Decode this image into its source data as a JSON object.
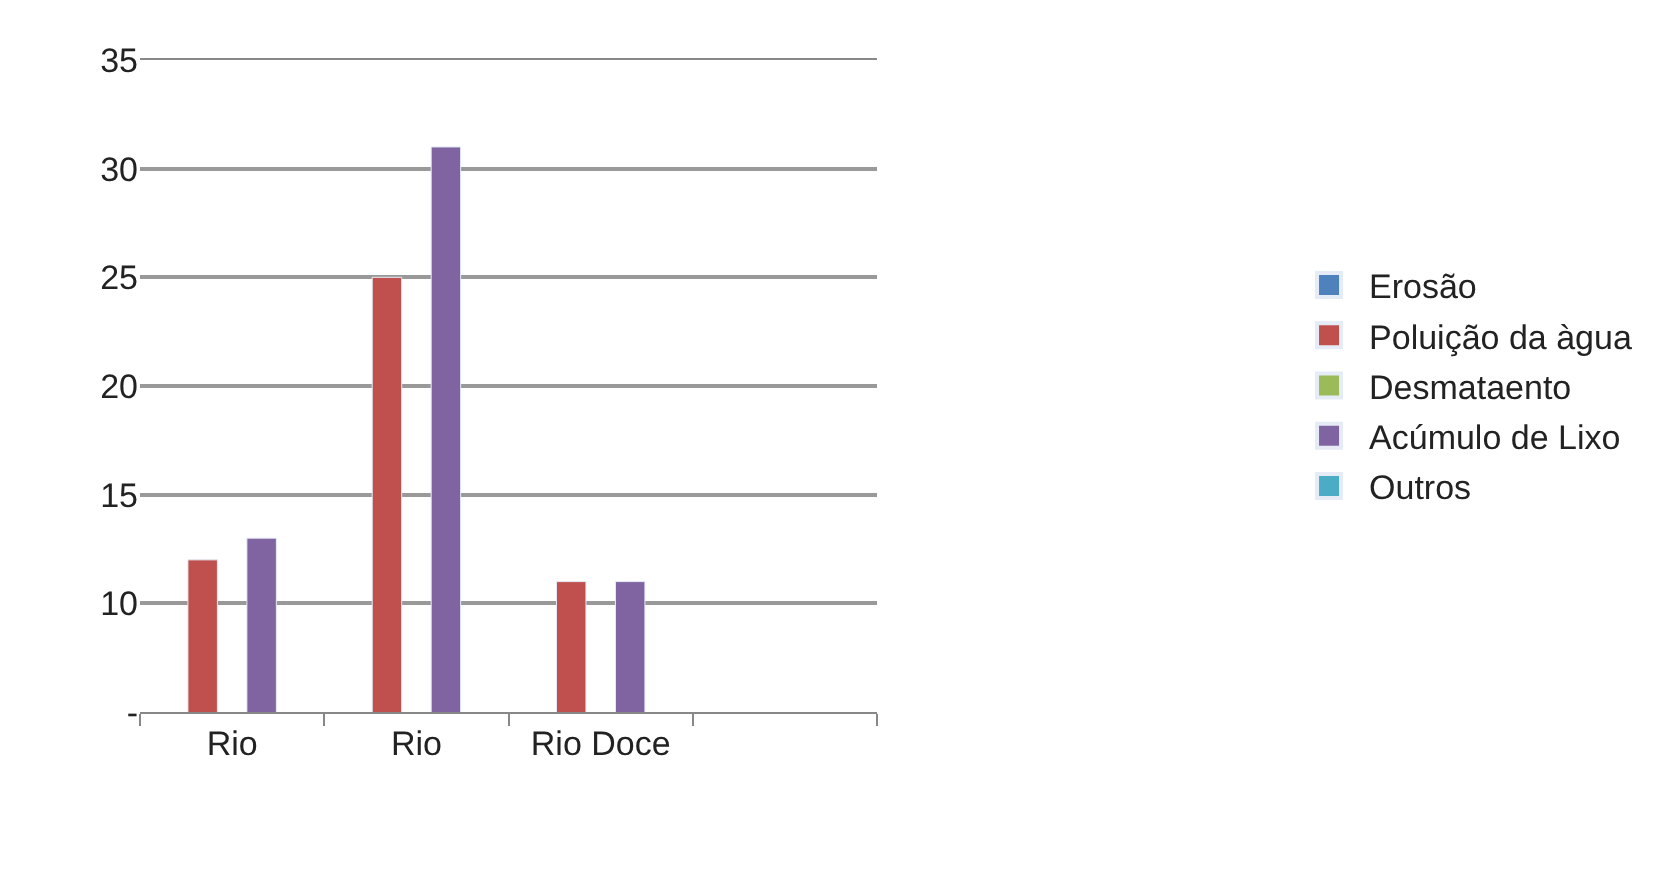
{
  "chart_data": {
    "type": "bar",
    "categories": [
      "Rio",
      "Rio",
      "Rio Doce",
      null
    ],
    "series": [
      {
        "name": "Erosão",
        "color": "#4f81bd",
        "values": [
          null,
          null,
          null,
          null
        ]
      },
      {
        "name": "Poluição da àgua",
        "color": "#c0504d",
        "values": [
          12,
          25,
          11,
          null
        ]
      },
      {
        "name": "Desmataento",
        "color": "#9bbb59",
        "values": [
          null,
          null,
          null,
          null
        ]
      },
      {
        "name": "Acúmulo de Lixo",
        "color": "#8064a2",
        "values": [
          13,
          31,
          11,
          null
        ]
      },
      {
        "name": "Outros",
        "color": "#4bacc6",
        "values": [
          null,
          null,
          null,
          null
        ]
      }
    ],
    "ylim": [
      5,
      35
    ],
    "yticks": [
      {
        "value": 5,
        "label": "-"
      },
      10,
      15,
      20,
      25,
      30,
      35
    ],
    "grid": "y",
    "legend": "right"
  }
}
